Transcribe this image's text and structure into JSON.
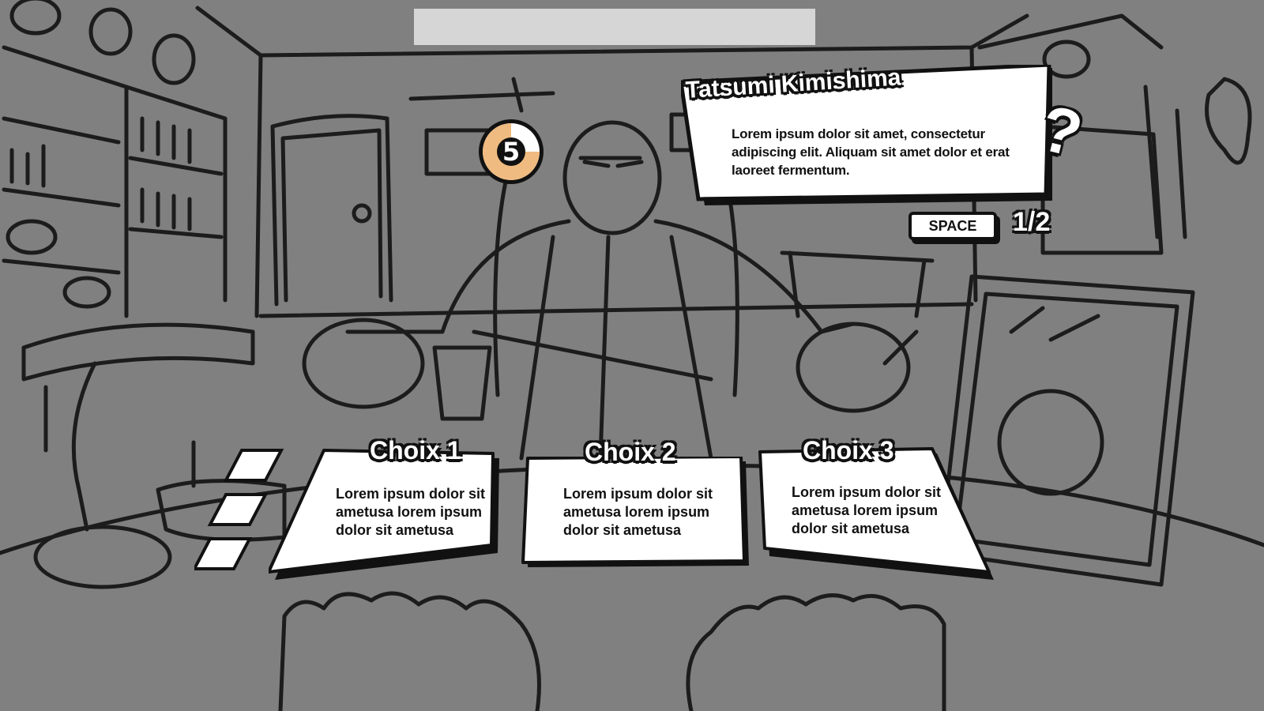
{
  "hud": {
    "timer": {
      "value": "5",
      "remaining_fraction": 0.75,
      "color": "#f0bb80"
    },
    "page_counter": "1/2",
    "advance_key": "SPACE"
  },
  "dialog": {
    "speaker": "Tatsumi Kimishima",
    "text": "Lorem ipsum dolor sit amet, consectetur adipiscing elit. Aliquam sit amet dolor et erat laoreet fermentum.",
    "icon": "question-mark-icon"
  },
  "choices": [
    {
      "title": "Choix 1",
      "text": "Lorem ipsum dolor sit ametusa lorem ipsum dolor sit ametusa"
    },
    {
      "title": "Choix 2",
      "text": "Lorem ipsum dolor sit ametusa lorem ipsum dolor sit ametusa"
    },
    {
      "title": "Choix 3",
      "text": "Lorem ipsum dolor sit ametusa lorem ipsum dolor sit ametusa"
    }
  ],
  "colors": {
    "background": "#808080",
    "ink": "#111111",
    "panel": "#ffffff",
    "top_bar": "#d6d6d6"
  }
}
